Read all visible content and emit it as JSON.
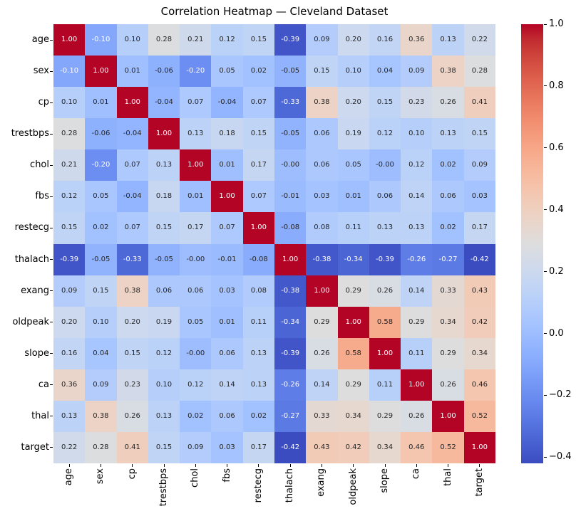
{
  "title": "Correlation Heatmap — Cleveland Dataset",
  "chart_data": {
    "type": "heatmap",
    "dataset": "Cleveland",
    "labels": [
      "age",
      "sex",
      "cp",
      "trestbps",
      "chol",
      "fbs",
      "restecg",
      "thalach",
      "exang",
      "oldpeak",
      "slope",
      "ca",
      "thal",
      "target"
    ],
    "matrix": [
      [
        "1.00",
        "-0.10",
        "0.10",
        "0.28",
        "0.21",
        "0.12",
        "0.15",
        "-0.39",
        "0.09",
        "0.20",
        "0.16",
        "0.36",
        "0.13",
        "0.22"
      ],
      [
        "-0.10",
        "1.00",
        "0.01",
        "-0.06",
        "-0.20",
        "0.05",
        "0.02",
        "-0.05",
        "0.15",
        "0.10",
        "0.04",
        "0.09",
        "0.38",
        "0.28"
      ],
      [
        "0.10",
        "0.01",
        "1.00",
        "-0.04",
        "0.07",
        "-0.04",
        "0.07",
        "-0.33",
        "0.38",
        "0.20",
        "0.15",
        "0.23",
        "0.26",
        "0.41"
      ],
      [
        "0.28",
        "-0.06",
        "-0.04",
        "1.00",
        "0.13",
        "0.18",
        "0.15",
        "-0.05",
        "0.06",
        "0.19",
        "0.12",
        "0.10",
        "0.13",
        "0.15"
      ],
      [
        "0.21",
        "-0.20",
        "0.07",
        "0.13",
        "1.00",
        "0.01",
        "0.17",
        "-0.00",
        "0.06",
        "0.05",
        "-0.00",
        "0.12",
        "0.02",
        "0.09"
      ],
      [
        "0.12",
        "0.05",
        "-0.04",
        "0.18",
        "0.01",
        "1.00",
        "0.07",
        "-0.01",
        "0.03",
        "0.01",
        "0.06",
        "0.14",
        "0.06",
        "0.03"
      ],
      [
        "0.15",
        "0.02",
        "0.07",
        "0.15",
        "0.17",
        "0.07",
        "1.00",
        "-0.08",
        "0.08",
        "0.11",
        "0.13",
        "0.13",
        "0.02",
        "0.17"
      ],
      [
        "-0.39",
        "-0.05",
        "-0.33",
        "-0.05",
        "-0.00",
        "-0.01",
        "-0.08",
        "1.00",
        "-0.38",
        "-0.34",
        "-0.39",
        "-0.26",
        "-0.27",
        "-0.42"
      ],
      [
        "0.09",
        "0.15",
        "0.38",
        "0.06",
        "0.06",
        "0.03",
        "0.08",
        "-0.38",
        "1.00",
        "0.29",
        "0.26",
        "0.14",
        "0.33",
        "0.43"
      ],
      [
        "0.20",
        "0.10",
        "0.20",
        "0.19",
        "0.05",
        "0.01",
        "0.11",
        "-0.34",
        "0.29",
        "1.00",
        "0.58",
        "0.29",
        "0.34",
        "0.42"
      ],
      [
        "0.16",
        "0.04",
        "0.15",
        "0.12",
        "-0.00",
        "0.06",
        "0.13",
        "-0.39",
        "0.26",
        "0.58",
        "1.00",
        "0.11",
        "0.29",
        "0.34"
      ],
      [
        "0.36",
        "0.09",
        "0.23",
        "0.10",
        "0.12",
        "0.14",
        "0.13",
        "-0.26",
        "0.14",
        "0.29",
        "0.11",
        "1.00",
        "0.26",
        "0.46"
      ],
      [
        "0.13",
        "0.38",
        "0.26",
        "0.13",
        "0.02",
        "0.06",
        "0.02",
        "-0.27",
        "0.33",
        "0.34",
        "0.29",
        "0.26",
        "1.00",
        "0.52"
      ],
      [
        "0.22",
        "0.28",
        "0.41",
        "0.15",
        "0.09",
        "0.03",
        "0.17",
        "-0.42",
        "0.43",
        "0.42",
        "0.34",
        "0.46",
        "0.52",
        "1.00"
      ]
    ],
    "colormap": "coolwarm",
    "vmin": -0.42,
    "vmax": 1.0,
    "annotations": true,
    "annotation_format": "2 decimals",
    "colorbar": {
      "position": "right",
      "tick_values": [
        1.0,
        0.8,
        0.6,
        0.4,
        0.2,
        0.0,
        -0.2,
        -0.4
      ],
      "tick_labels": [
        "1.0",
        "0.8",
        "0.6",
        "0.4",
        "0.2",
        "0.0",
        "−0.2",
        "−0.4"
      ]
    },
    "grid": false,
    "xlabel": "",
    "ylabel": ""
  },
  "colors": {
    "background": "#ffffff",
    "cmap_low": "#3b4cc0",
    "cmap_mid": "#dddddd",
    "cmap_high": "#b40426",
    "annot_dark": "#262626",
    "annot_light": "#ffffff",
    "axis_text": "#000000"
  }
}
